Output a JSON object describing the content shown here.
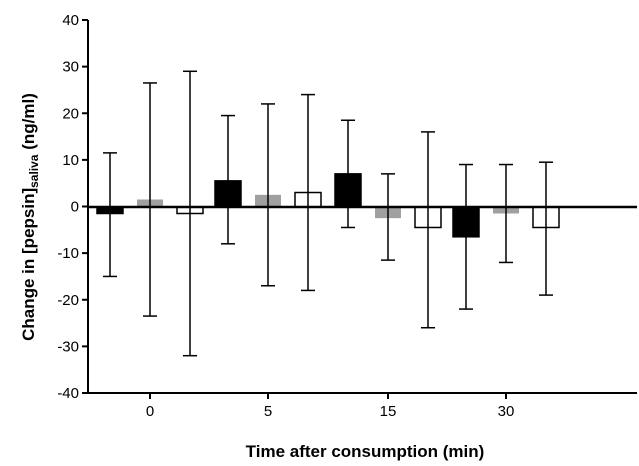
{
  "chart_data": {
    "type": "bar",
    "categories": [
      "0",
      "5",
      "15",
      "30"
    ],
    "ylabel_main": "Change in [pepsin]",
    "ylabel_sub": "saliva",
    "ylabel_unit": " (ng/ml)",
    "xlabel": "Time after consumption (min)",
    "ylim": [
      -40,
      40
    ],
    "yticks": [
      -40,
      -30,
      -20,
      -10,
      0,
      10,
      20,
      30,
      40
    ],
    "grid": false,
    "series": [
      {
        "fill": "#000000",
        "values": [
          -1.5,
          5.5,
          7.0,
          -6.5
        ],
        "error_low": [
          -15,
          -8,
          -4.5,
          -22
        ],
        "error_high": [
          11.5,
          19.5,
          18.5,
          9
        ]
      },
      {
        "fill": "#a0a0a0",
        "values": [
          1.5,
          2.5,
          -2.5,
          -1.5
        ],
        "error_low": [
          -23.5,
          -17,
          -11.5,
          -12
        ],
        "error_high": [
          26.5,
          22,
          7,
          9
        ]
      },
      {
        "fill": "#ffffff",
        "values": [
          -1.5,
          3.0,
          -4.5,
          -4.5
        ],
        "error_low": [
          -32,
          -18,
          -26,
          -19
        ],
        "error_high": [
          29,
          24,
          16,
          9.5
        ]
      }
    ]
  }
}
